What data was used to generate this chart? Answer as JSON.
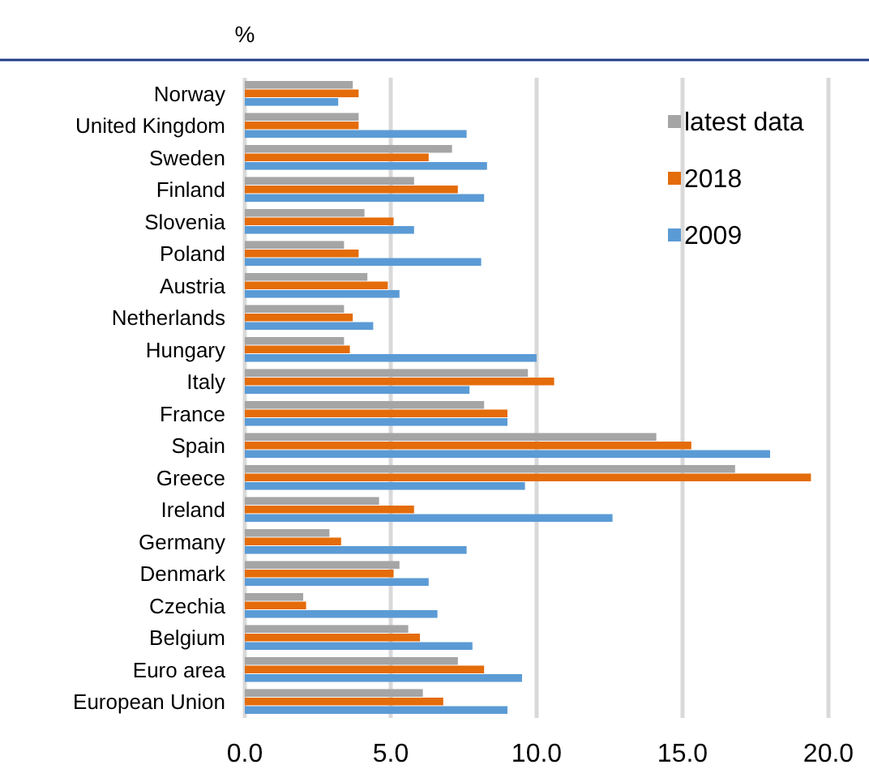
{
  "chart_data": {
    "type": "bar",
    "orientation": "horizontal",
    "xlabel": "%",
    "categories": [
      "Norway",
      "United Kingdom",
      "Sweden",
      "Finland",
      "Slovenia",
      "Poland",
      "Austria",
      "Netherlands",
      "Hungary",
      "Italy",
      "France",
      "Spain",
      "Greece",
      "Ireland",
      "Germany",
      "Denmark",
      "Czechia",
      "Belgium",
      "Euro area",
      "European Union"
    ],
    "series": [
      {
        "name": "latest data",
        "color": "#a5a5a5",
        "values": [
          3.7,
          3.9,
          7.1,
          5.8,
          4.1,
          3.4,
          4.2,
          3.4,
          3.4,
          9.7,
          8.2,
          14.1,
          16.8,
          4.6,
          2.9,
          5.3,
          2.0,
          5.6,
          7.3,
          6.1
        ]
      },
      {
        "name": "2018",
        "color": "#e46c0a",
        "values": [
          3.9,
          3.9,
          6.3,
          7.3,
          5.1,
          3.9,
          4.9,
          3.7,
          3.6,
          10.6,
          9.0,
          15.3,
          19.4,
          5.8,
          3.3,
          5.1,
          2.1,
          6.0,
          8.2,
          6.8
        ]
      },
      {
        "name": "2009",
        "color": "#5b9bd5",
        "values": [
          3.2,
          7.6,
          8.3,
          8.2,
          5.8,
          8.1,
          5.3,
          4.4,
          10.0,
          7.7,
          9.0,
          18.0,
          9.6,
          12.6,
          7.6,
          6.3,
          6.6,
          7.8,
          9.5,
          9.0
        ]
      }
    ],
    "xlim": [
      0,
      20
    ],
    "xticks": [
      {
        "value": 0,
        "label": "0.0"
      },
      {
        "value": 5,
        "label": "5.0"
      },
      {
        "value": 10,
        "label": "10.0"
      },
      {
        "value": 15,
        "label": "15.0"
      },
      {
        "value": 20,
        "label": "20.0"
      }
    ],
    "grid": "x",
    "legend": "top right"
  }
}
